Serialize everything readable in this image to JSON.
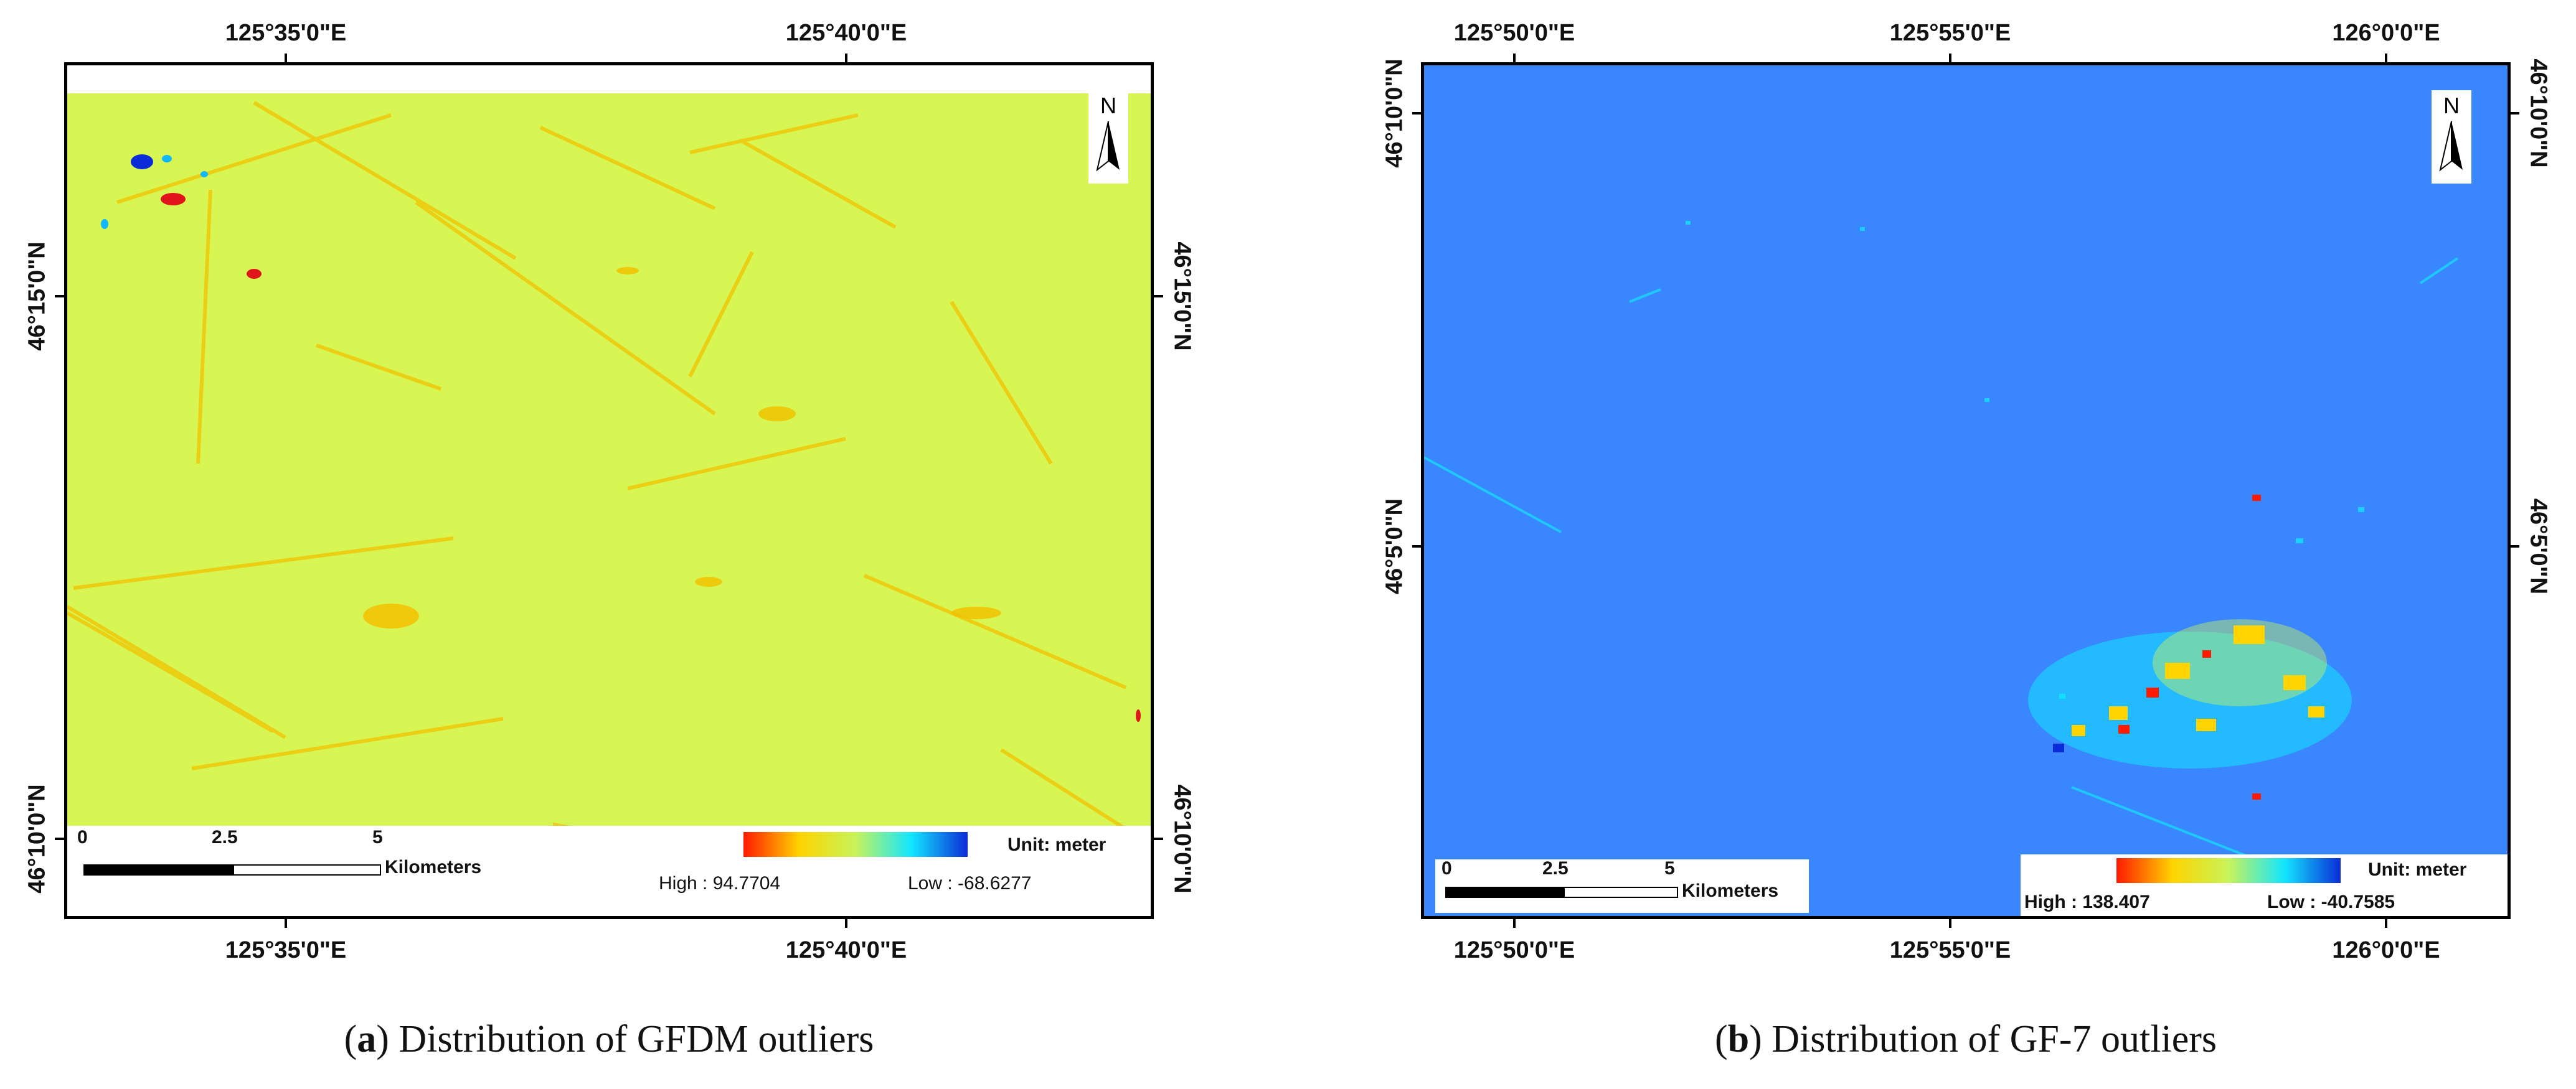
{
  "panel_a": {
    "top_coords": [
      "125°35'0\"E",
      "125°40'0\"E"
    ],
    "bottom_coords": [
      "125°35'0\"E",
      "125°40'0\"E"
    ],
    "left_coords": [
      "46°15'0\"N",
      "46°10'0\"N"
    ],
    "right_coords": [
      "46°15'0\"N",
      "46°10'0\"N"
    ],
    "north_label": "N",
    "scale_labels": [
      "0",
      "2.5",
      "5"
    ],
    "scale_unit": "Kilometers",
    "unit_label": "Unit: meter",
    "high_label": "High : 94.7704",
    "low_label": "Low : -68.6277",
    "background_color": "#d8f653",
    "ramp_colors": [
      "#ff1a00",
      "#ffd400",
      "#c8f35a",
      "#12e6ff",
      "#0b2bd8"
    ],
    "caption_letter": "a",
    "caption_text": "Distribution of GFDM outliers"
  },
  "panel_b": {
    "top_coords": [
      "125°50'0\"E",
      "125°55'0\"E",
      "126°0'0\"E"
    ],
    "bottom_coords": [
      "125°50'0\"E",
      "125°55'0\"E",
      "126°0'0\"E"
    ],
    "left_coords": [
      "46°10'0\"N",
      "46°5'0\"N"
    ],
    "right_coords": [
      "46°10'0\"N",
      "46°5'0\"N"
    ],
    "north_label": "N",
    "scale_labels": [
      "0",
      "2.5",
      "5"
    ],
    "scale_unit": "Kilometers",
    "unit_label": "Unit: meter",
    "high_label": "High : 138.407",
    "low_label": "Low : -40.7585",
    "background_color": "#3a86ff",
    "ramp_colors": [
      "#ff1a00",
      "#ffd400",
      "#c8f35a",
      "#12e6ff",
      "#0b2bd8"
    ],
    "caption_letter": "b",
    "caption_text": "Distribution of GF-7 outliers"
  }
}
